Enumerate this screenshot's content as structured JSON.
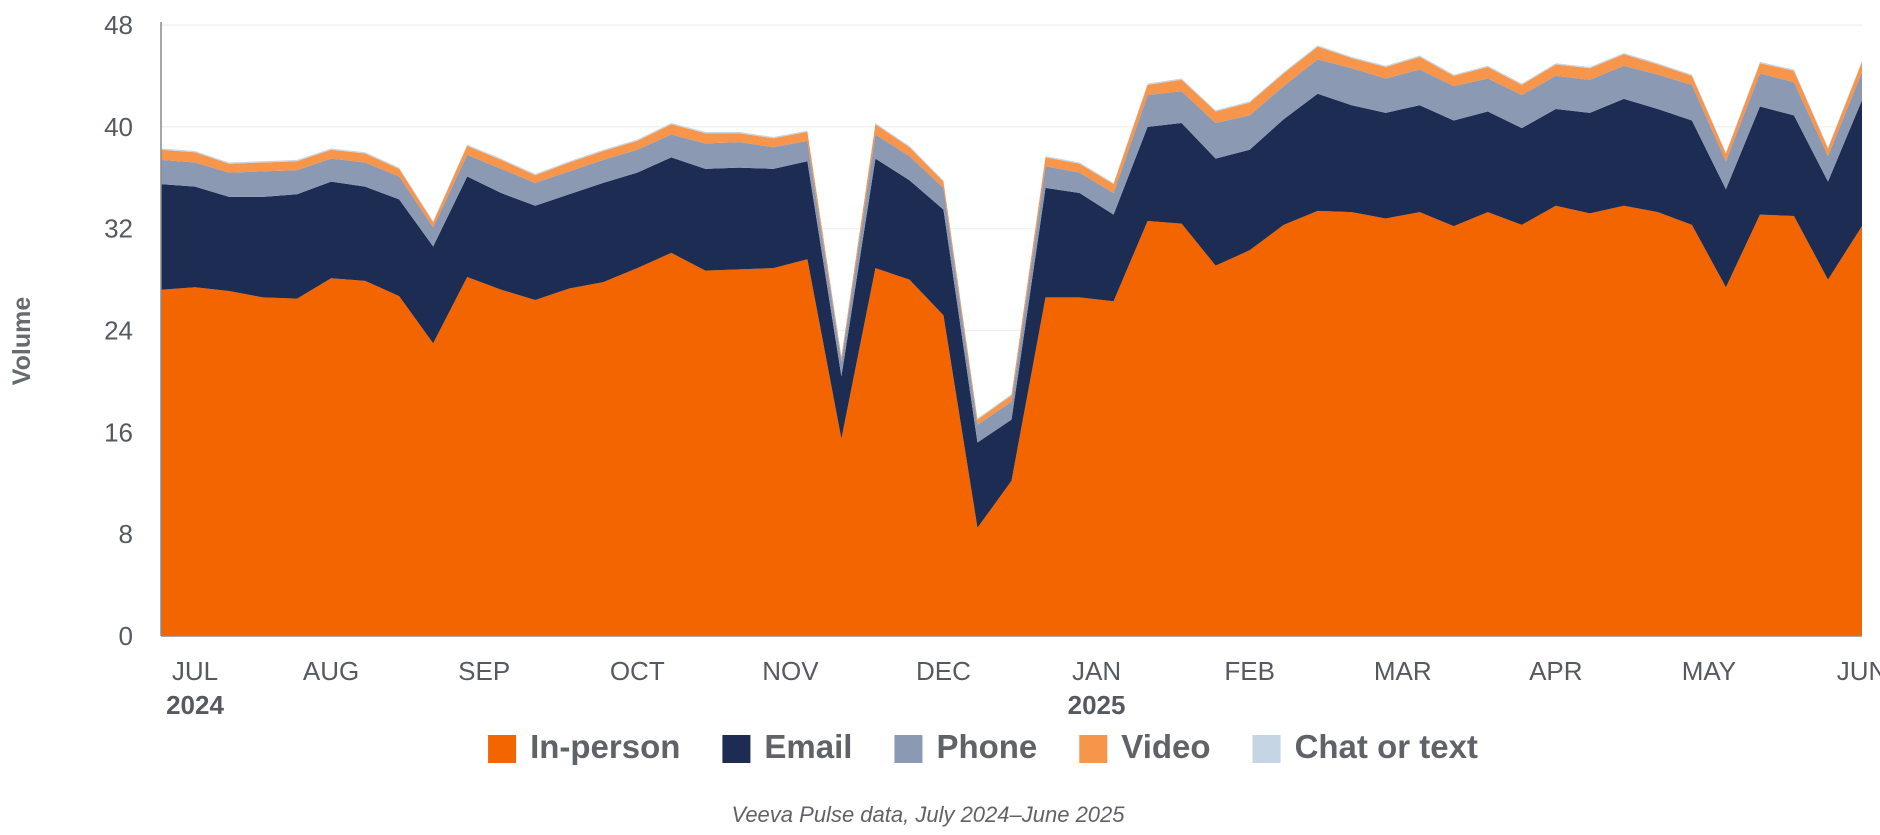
{
  "chart_data": {
    "type": "area",
    "stacked": true,
    "ylabel": "Volume",
    "ylim": [
      0,
      48
    ],
    "yticks": [
      0,
      8,
      16,
      24,
      32,
      40,
      48
    ],
    "x_month_labels": [
      {
        "label": "JUL",
        "index": 1,
        "year": "2024"
      },
      {
        "label": "AUG",
        "index": 5
      },
      {
        "label": "SEP",
        "index": 9.5
      },
      {
        "label": "OCT",
        "index": 14
      },
      {
        "label": "NOV",
        "index": 18.5
      },
      {
        "label": "DEC",
        "index": 23
      },
      {
        "label": "JAN",
        "index": 27.5,
        "year": "2025"
      },
      {
        "label": "FEB",
        "index": 32
      },
      {
        "label": "MAR",
        "index": 36.5
      },
      {
        "label": "APR",
        "index": 41
      },
      {
        "label": "MAY",
        "index": 45.5
      },
      {
        "label": "JUN",
        "index": 50
      }
    ],
    "legend_position": "bottom",
    "series": [
      {
        "name": "In-person",
        "color": "#f26500",
        "values": [
          27.2,
          27.4,
          27.1,
          26.6,
          26.5,
          28.1,
          27.9,
          26.7,
          23.0,
          28.2,
          27.2,
          26.4,
          27.3,
          27.8,
          28.9,
          30.1,
          28.7,
          28.8,
          28.9,
          29.6,
          15.5,
          28.9,
          28.0,
          25.2,
          8.5,
          12.2,
          26.6,
          26.6,
          26.3,
          32.6,
          32.4,
          29.1,
          30.3,
          32.3,
          33.4,
          33.3,
          32.8,
          33.3,
          32.2,
          33.3,
          32.3,
          33.8,
          33.2,
          33.8,
          33.3,
          32.3,
          27.4,
          33.1,
          33.0,
          28.0,
          32.2
        ]
      },
      {
        "name": "Email",
        "color": "#1c2c52",
        "values": [
          8.3,
          7.9,
          7.4,
          7.9,
          8.2,
          7.6,
          7.4,
          7.6,
          7.6,
          7.9,
          7.6,
          7.4,
          7.4,
          7.8,
          7.5,
          7.5,
          8.0,
          8.0,
          7.8,
          7.7,
          4.9,
          8.6,
          7.8,
          8.3,
          6.7,
          4.8,
          8.6,
          8.2,
          6.8,
          7.4,
          7.9,
          8.4,
          7.9,
          8.3,
          9.2,
          8.4,
          8.3,
          8.4,
          8.3,
          7.9,
          7.6,
          7.6,
          7.9,
          8.4,
          8.1,
          8.2,
          7.7,
          8.5,
          7.9,
          7.7,
          9.9
        ]
      },
      {
        "name": "Phone",
        "color": "#8b99b3",
        "values": [
          1.9,
          1.9,
          1.9,
          2.0,
          1.9,
          1.8,
          1.9,
          1.8,
          1.5,
          1.7,
          1.9,
          1.8,
          1.8,
          1.8,
          1.8,
          1.8,
          2.0,
          2.0,
          1.7,
          1.6,
          1.2,
          1.9,
          1.9,
          1.7,
          1.4,
          1.4,
          1.7,
          1.6,
          1.7,
          2.5,
          2.5,
          2.8,
          2.7,
          2.6,
          2.7,
          2.9,
          2.7,
          2.8,
          2.7,
          2.6,
          2.6,
          2.6,
          2.6,
          2.6,
          2.7,
          2.8,
          2.2,
          2.6,
          2.6,
          2.0,
          2.2
        ]
      },
      {
        "name": "Video",
        "color": "#f7954a",
        "values": [
          0.8,
          0.8,
          0.7,
          0.7,
          0.7,
          0.7,
          0.7,
          0.6,
          0.4,
          0.7,
          0.7,
          0.6,
          0.7,
          0.7,
          0.7,
          0.8,
          0.8,
          0.7,
          0.7,
          0.7,
          0.3,
          0.8,
          0.7,
          0.5,
          0.4,
          0.5,
          0.7,
          0.7,
          0.7,
          0.8,
          0.9,
          0.9,
          1.0,
          1.0,
          1.0,
          0.8,
          0.9,
          1.0,
          0.8,
          0.9,
          0.8,
          0.9,
          0.9,
          0.9,
          0.8,
          0.7,
          0.6,
          0.8,
          0.9,
          0.6,
          0.8
        ]
      },
      {
        "name": "Chat or text",
        "color": "#c5d5e4",
        "values": [
          0.1,
          0.1,
          0.1,
          0.1,
          0.1,
          0.1,
          0.1,
          0.1,
          0.1,
          0.1,
          0.1,
          0.1,
          0.1,
          0.1,
          0.1,
          0.1,
          0.1,
          0.1,
          0.1,
          0.1,
          0.1,
          0.1,
          0.1,
          0.1,
          0.1,
          0.1,
          0.1,
          0.1,
          0.1,
          0.1,
          0.1,
          0.1,
          0.1,
          0.1,
          0.1,
          0.1,
          0.1,
          0.1,
          0.1,
          0.1,
          0.1,
          0.1,
          0.1,
          0.1,
          0.1,
          0.1,
          0.1,
          0.1,
          0.1,
          0.1,
          0.1
        ]
      }
    ]
  },
  "source_note": "Veeva Pulse data, July 2024–June 2025"
}
